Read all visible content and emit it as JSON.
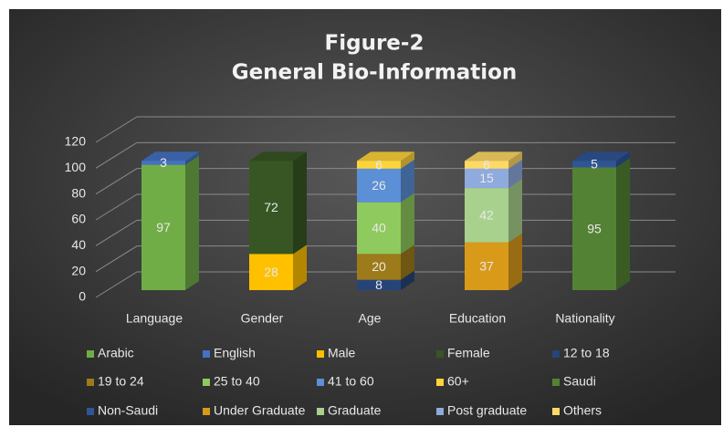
{
  "chart_data": {
    "type": "bar3d_stacked",
    "title": "Figure-2",
    "subtitle": "General Bio-Information",
    "categories": [
      "Language",
      "Gender",
      "Age",
      "Education",
      "Nationality"
    ],
    "series": [
      {
        "name": "Arabic",
        "color": "#70ad47",
        "values": [
          97,
          null,
          null,
          null,
          null
        ]
      },
      {
        "name": "English",
        "color": "#4472c4",
        "values": [
          3,
          null,
          null,
          null,
          null
        ]
      },
      {
        "name": "Male",
        "color": "#ffc000",
        "values": [
          null,
          28,
          null,
          null,
          null
        ]
      },
      {
        "name": "Female",
        "color": "#375623",
        "values": [
          null,
          72,
          null,
          null,
          null
        ]
      },
      {
        "name": "12 to 18",
        "color": "#264478",
        "values": [
          null,
          null,
          8,
          null,
          null
        ]
      },
      {
        "name": "19 to 24",
        "color": "#9e7b1a",
        "values": [
          null,
          null,
          20,
          null,
          null
        ]
      },
      {
        "name": "25 to 40",
        "color": "#8fca5e",
        "values": [
          null,
          null,
          40,
          null,
          null
        ]
      },
      {
        "name": "41 to 60",
        "color": "#5b8fd6",
        "values": [
          null,
          null,
          26,
          null,
          null
        ]
      },
      {
        "name": "60+",
        "color": "#ffd43b",
        "values": [
          null,
          null,
          6,
          null,
          null
        ]
      },
      {
        "name": "Saudi",
        "color": "#548235",
        "values": [
          null,
          null,
          null,
          null,
          95
        ]
      },
      {
        "name": "Non-Saudi",
        "color": "#2f5597",
        "values": [
          null,
          null,
          null,
          null,
          5
        ]
      },
      {
        "name": "Under Graduate",
        "color": "#d99a1a",
        "values": [
          null,
          null,
          null,
          37,
          null
        ]
      },
      {
        "name": "Graduate",
        "color": "#a9d18e",
        "values": [
          null,
          null,
          null,
          42,
          null
        ]
      },
      {
        "name": "Post graduate",
        "color": "#8faadc",
        "values": [
          null,
          null,
          null,
          15,
          null
        ]
      },
      {
        "name": "Others",
        "color": "#ffd966",
        "values": [
          null,
          null,
          null,
          6,
          null
        ]
      }
    ],
    "ylim": [
      0,
      120
    ],
    "yticks": [
      0,
      20,
      40,
      60,
      80,
      100,
      120
    ],
    "grid": true,
    "legend": "bottom"
  }
}
